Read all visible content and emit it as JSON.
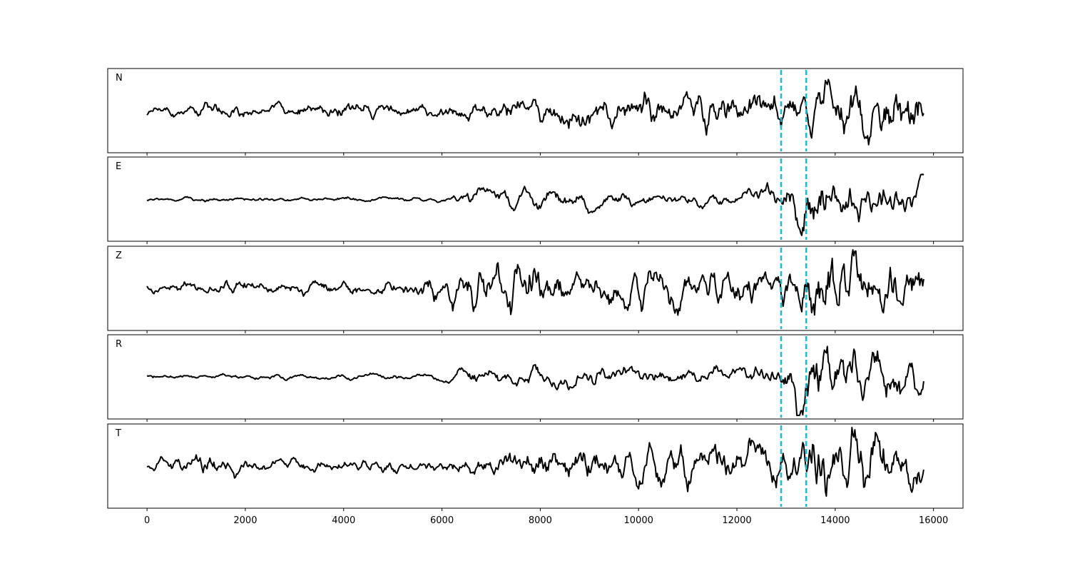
{
  "chart_data": {
    "type": "line",
    "title": "",
    "xlabel": "",
    "ylabel": "",
    "xlim": [
      -800,
      16600
    ],
    "x_ticks": [
      0,
      2000,
      4000,
      6000,
      8000,
      10000,
      12000,
      14000,
      16000
    ],
    "x_tick_labels": [
      "0",
      "2000",
      "4000",
      "6000",
      "8000",
      "10000",
      "12000",
      "14000",
      "16000"
    ],
    "sample_range": [
      0,
      15800
    ],
    "grid": false,
    "legend": "none",
    "vertical_markers": [
      12900,
      13410
    ],
    "colors": {
      "trace": "#000000",
      "marker": "#17becf"
    },
    "panels": [
      {
        "label": "N",
        "envelope": [
          [
            0,
            0.1
          ],
          [
            1000,
            0.12
          ],
          [
            1300,
            0.28
          ],
          [
            2000,
            0.14
          ],
          [
            3000,
            0.16
          ],
          [
            4500,
            0.2
          ],
          [
            6000,
            0.16
          ],
          [
            7600,
            0.3
          ],
          [
            8800,
            0.35
          ],
          [
            10500,
            0.42
          ],
          [
            12000,
            0.42
          ],
          [
            12900,
            0.5
          ],
          [
            13400,
            0.6
          ],
          [
            15500,
            0.7
          ],
          [
            15800,
            0.5
          ]
        ],
        "period": 70
      },
      {
        "label": "E",
        "envelope": [
          [
            0,
            0.06
          ],
          [
            3000,
            0.06
          ],
          [
            6000,
            0.07
          ],
          [
            6500,
            0.22
          ],
          [
            7600,
            0.28
          ],
          [
            8700,
            0.28
          ],
          [
            10000,
            0.18
          ],
          [
            12000,
            0.2
          ],
          [
            12900,
            0.3
          ],
          [
            13400,
            0.9
          ],
          [
            14500,
            0.55
          ],
          [
            15800,
            0.45
          ]
        ],
        "period": 90
      },
      {
        "label": "Z",
        "envelope": [
          [
            0,
            0.1
          ],
          [
            2000,
            0.16
          ],
          [
            4000,
            0.12
          ],
          [
            5500,
            0.2
          ],
          [
            6500,
            0.45
          ],
          [
            7500,
            0.65
          ],
          [
            8500,
            0.35
          ],
          [
            10500,
            0.45
          ],
          [
            12500,
            0.4
          ],
          [
            12900,
            0.45
          ],
          [
            13900,
            0.8
          ],
          [
            15800,
            0.5
          ]
        ],
        "period": 80
      },
      {
        "label": "R",
        "envelope": [
          [
            0,
            0.06
          ],
          [
            4000,
            0.06
          ],
          [
            6000,
            0.08
          ],
          [
            6500,
            0.22
          ],
          [
            8000,
            0.22
          ],
          [
            9000,
            0.28
          ],
          [
            12000,
            0.22
          ],
          [
            12900,
            0.25
          ],
          [
            13400,
            0.9
          ],
          [
            14500,
            0.6
          ],
          [
            15800,
            0.55
          ]
        ],
        "period": 90
      },
      {
        "label": "T",
        "envelope": [
          [
            0,
            0.12
          ],
          [
            1300,
            0.3
          ],
          [
            2000,
            0.15
          ],
          [
            4000,
            0.16
          ],
          [
            6000,
            0.16
          ],
          [
            7600,
            0.35
          ],
          [
            8800,
            0.4
          ],
          [
            10500,
            0.45
          ],
          [
            11800,
            0.45
          ],
          [
            12900,
            0.55
          ],
          [
            13400,
            0.75
          ],
          [
            14500,
            0.85
          ],
          [
            15800,
            0.5
          ]
        ],
        "period": 70
      }
    ]
  }
}
